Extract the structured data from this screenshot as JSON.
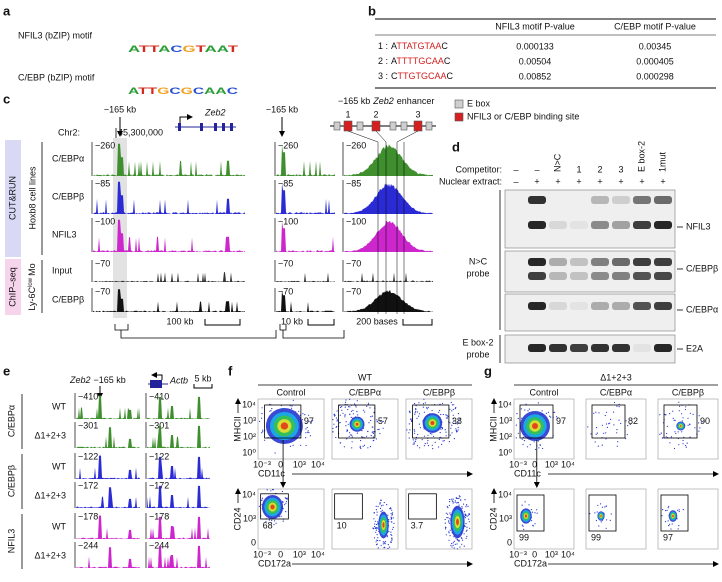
{
  "panel_labels": [
    "a",
    "b",
    "c",
    "d",
    "e",
    "f",
    "g"
  ],
  "motifs": [
    {
      "label": "NFIL3 (bZIP) motif",
      "sequence": "ATTACGTAAT"
    },
    {
      "label": "C/EBP (bZIP) motif",
      "sequence": "ATTGCGCAAC"
    }
  ],
  "table": {
    "header": [
      "NFIL3 motif P-value",
      "C/EBP motif P-value"
    ],
    "rows": [
      {
        "index": "1 :",
        "sequence": [
          "A",
          "TTATGTAA",
          "C"
        ],
        "values": [
          "0.000133",
          "0.00345"
        ]
      },
      {
        "index": "2 :",
        "sequence": [
          "A",
          "TTTTGCAA",
          "C"
        ],
        "values": [
          "0.00504",
          "0.000405"
        ]
      },
      {
        "index": "3 :",
        "sequence": [
          "C",
          "TTGTGCAA",
          "C"
        ],
        "values": [
          "0.00852",
          "0.000298"
        ]
      }
    ]
  },
  "genome": {
    "marker": "−165 kb",
    "gene": "Zeb2",
    "chr": "Chr2:",
    "coordinate": "45,300,000",
    "enhancer_title": [
      "−165 kb",
      "Zeb2",
      "enhancer"
    ],
    "sites": [
      "1",
      "2",
      "3"
    ],
    "legend": [
      "E box",
      "NFIL3 or C/EBP binding site"
    ],
    "groups": [
      {
        "assay": "CUT&RUN",
        "sample": [
          "Hoxb8 cell lines"
        ]
      },
      {
        "assay": "ChIP–seq",
        "sample": [
          "Ly-6C",
          "low",
          "Mo"
        ]
      }
    ],
    "tracks": [
      {
        "name": "C/EBPα",
        "scale": "−260",
        "color": "#3f8f2f"
      },
      {
        "name": "C/EBPβ",
        "scale": "−85",
        "color": "#2b2bd6"
      },
      {
        "name": "NFIL3",
        "scale": "−100",
        "color": "#cc26cc"
      },
      {
        "name": "Input",
        "scale": "−70",
        "color": "#333333"
      },
      {
        "name": "C/EBPβ",
        "scale": "−70",
        "color": "#111111"
      }
    ],
    "scale_bars": [
      "100 kb",
      "10 kb",
      "200 bases"
    ]
  },
  "emsa": {
    "competitor_label": "Competitor:",
    "extract_label": "Nuclear extract:",
    "competitors": [
      "–",
      "–",
      "N>C",
      "1",
      "2",
      "3",
      "E box-2",
      "1mut"
    ],
    "extract": [
      "–",
      "+",
      "+",
      "+",
      "+",
      "+",
      "+",
      "+"
    ],
    "bands": [
      "NFIL3",
      "C/EBPβ",
      "C/EBPα",
      "E2A"
    ],
    "probes": [
      [
        "N>C",
        "probe"
      ],
      [
        "E box-2",
        "probe"
      ]
    ]
  },
  "deletion_tracks": {
    "locus": [
      "Zeb2",
      "−165 kb"
    ],
    "gene2": "Actb",
    "scale_bar": "5 kb",
    "groups": [
      {
        "factor": "C/EBPα",
        "color": "#3f8f2f",
        "rows": [
          {
            "genotype": "WT",
            "scales": [
              "−410",
              "−410"
            ]
          },
          {
            "genotype": "Δ1+2+3",
            "scales": [
              "−301",
              "−301"
            ]
          }
        ]
      },
      {
        "factor": "C/EBPβ",
        "color": "#2b2bd6",
        "rows": [
          {
            "genotype": "WT",
            "scales": [
              "−122",
              "−122"
            ]
          },
          {
            "genotype": "Δ1+2+3",
            "scales": [
              "−172",
              "−172"
            ]
          }
        ]
      },
      {
        "factor": "NFIL3",
        "color": "#cc26cc",
        "rows": [
          {
            "genotype": "WT",
            "scales": [
              "−178",
              "−178"
            ]
          },
          {
            "genotype": "Δ1+2+3",
            "scales": [
              "−244",
              "−244"
            ]
          }
        ]
      }
    ]
  },
  "flow": {
    "axes": {
      "top": {
        "y_label": "MHCII",
        "x_label": "CD11c",
        "y_ticks": [
          "10⁴",
          "10³",
          "10²",
          "10⁰"
        ],
        "x_ticks": [
          "10⁻³",
          "0",
          "10³",
          "10⁴"
        ]
      },
      "bottom": {
        "y_label": "CD24",
        "x_label": "CD172a",
        "y_ticks": [
          "10⁴",
          "10³",
          "0"
        ],
        "x_ticks": [
          "10⁻³",
          "0",
          "10³",
          "10⁴"
        ]
      }
    },
    "f": {
      "title": "WT",
      "samples": [
        "Control",
        "C/EBPα",
        "C/EBPβ"
      ],
      "top_gates": [
        97,
        57,
        38
      ],
      "bottom_gates": [
        68,
        10,
        3.7
      ]
    },
    "g": {
      "title": "Δ1+2+3",
      "samples": [
        "Control",
        "C/EBPα",
        "C/EBPβ"
      ],
      "top_gates": [
        97,
        82,
        90
      ],
      "bottom_gates": [
        99,
        99,
        97
      ]
    }
  }
}
